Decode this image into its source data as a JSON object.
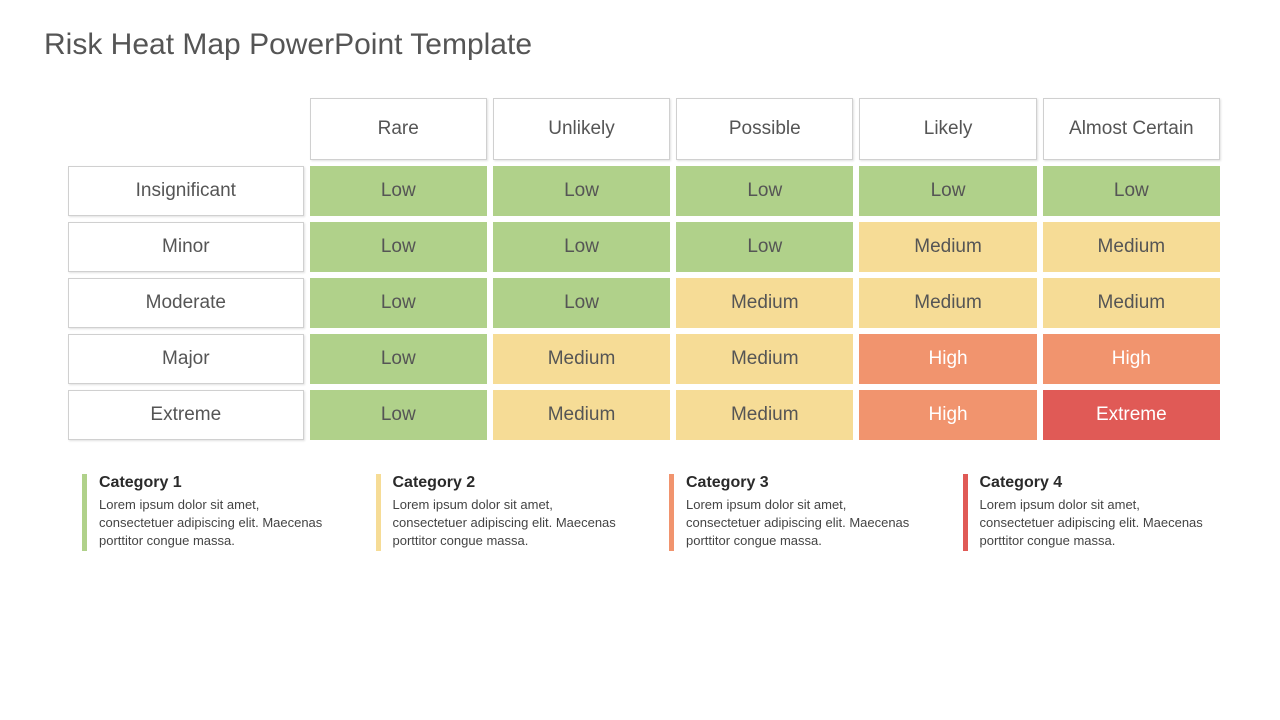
{
  "title": "Risk Heat Map PowerPoint Template",
  "heatmap": {
    "type": "heatmap",
    "colors": {
      "low": {
        "bg": "#b0d18a",
        "fg": "#555555"
      },
      "medium": {
        "bg": "#f6dc96",
        "fg": "#555555"
      },
      "high": {
        "bg": "#f1946e",
        "fg": "#ffffff"
      },
      "extreme": {
        "bg": "#e05a56",
        "fg": "#ffffff"
      }
    },
    "header_bg": "#ffffff",
    "header_border": "#d0d0d0",
    "header_text_color": "#555555",
    "cell_font_size": 19,
    "header_font_size": 19,
    "columns": [
      "Rare",
      "Unlikely",
      "Possible",
      "Likely",
      "Almost Certain"
    ],
    "rows": [
      "Insignificant",
      "Minor",
      "Moderate",
      "Major",
      "Extreme"
    ],
    "cells": [
      [
        {
          "label": "Low",
          "level": "low"
        },
        {
          "label": "Low",
          "level": "low"
        },
        {
          "label": "Low",
          "level": "low"
        },
        {
          "label": "Low",
          "level": "low"
        },
        {
          "label": "Low",
          "level": "low"
        }
      ],
      [
        {
          "label": "Low",
          "level": "low"
        },
        {
          "label": "Low",
          "level": "low"
        },
        {
          "label": "Low",
          "level": "low"
        },
        {
          "label": "Medium",
          "level": "medium"
        },
        {
          "label": "Medium",
          "level": "medium"
        }
      ],
      [
        {
          "label": "Low",
          "level": "low"
        },
        {
          "label": "Low",
          "level": "low"
        },
        {
          "label": "Medium",
          "level": "medium"
        },
        {
          "label": "Medium",
          "level": "medium"
        },
        {
          "label": "Medium",
          "level": "medium"
        }
      ],
      [
        {
          "label": "Low",
          "level": "low"
        },
        {
          "label": "Medium",
          "level": "medium"
        },
        {
          "label": "Medium",
          "level": "medium"
        },
        {
          "label": "High",
          "level": "high"
        },
        {
          "label": "High",
          "level": "high"
        }
      ],
      [
        {
          "label": "Low",
          "level": "low"
        },
        {
          "label": "Medium",
          "level": "medium"
        },
        {
          "label": "Medium",
          "level": "medium"
        },
        {
          "label": "High",
          "level": "high"
        },
        {
          "label": "Extreme",
          "level": "extreme"
        }
      ]
    ],
    "col_widths_pct": [
      21,
      15.8,
      15.8,
      15.8,
      15.8,
      15.8
    ]
  },
  "legend": {
    "items": [
      {
        "title": "Category 1",
        "accent": "#b0d18a",
        "text": "Lorem ipsum dolor sit amet, consectetuer adipiscing elit. Maecenas porttitor congue massa."
      },
      {
        "title": "Category 2",
        "accent": "#f6dc96",
        "text": "Lorem ipsum dolor sit amet, consectetuer adipiscing elit. Maecenas porttitor congue massa."
      },
      {
        "title": "Category 3",
        "accent": "#f1946e",
        "text": "Lorem ipsum dolor sit amet, consectetuer adipiscing elit. Maecenas porttitor congue massa."
      },
      {
        "title": "Category 4",
        "accent": "#e05a56",
        "text": "Lorem ipsum dolor sit amet, consectetuer adipiscing elit. Maecenas porttitor congue massa."
      }
    ],
    "title_font_size": 16,
    "text_font_size": 13,
    "title_color": "#2a2a2a",
    "text_color": "#444444"
  }
}
